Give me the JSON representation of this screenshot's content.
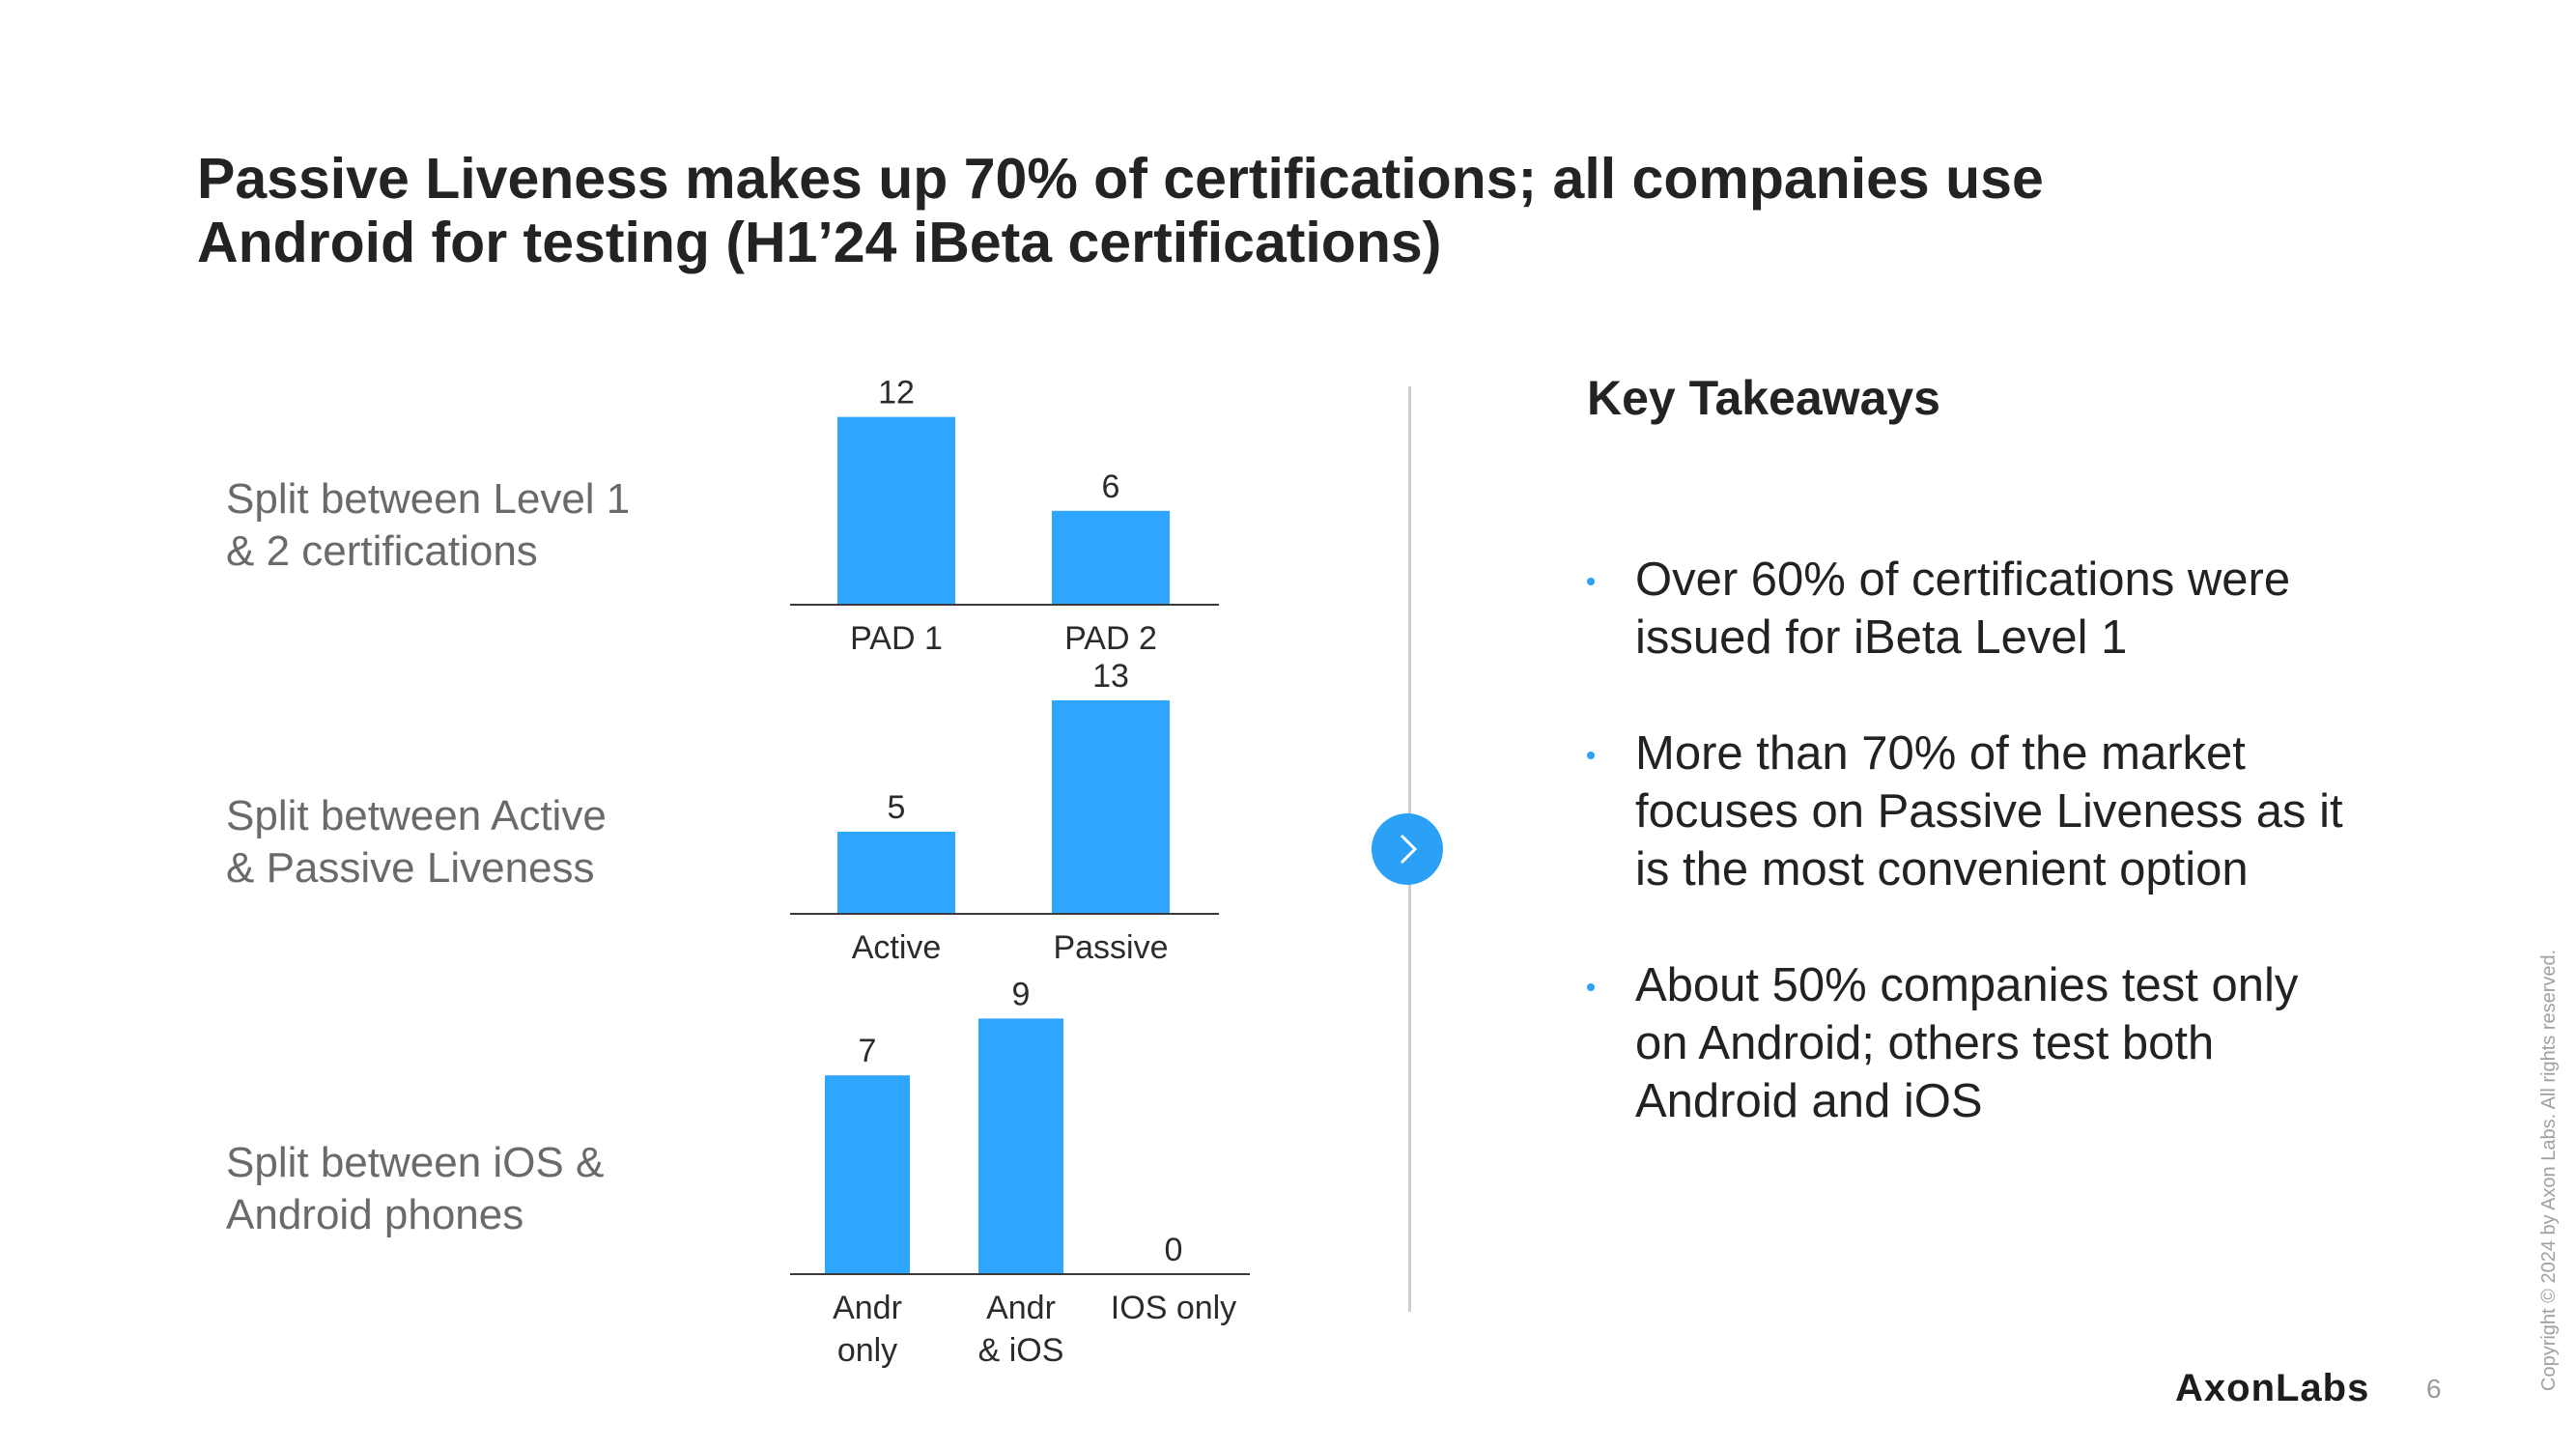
{
  "title": {
    "line1": "Passive Liveness makes up 70% of certifications; all companies use",
    "line2": "Android for testing (H1’24 iBeta certifications)"
  },
  "rows": [
    {
      "label_lines": [
        "Split between Level 1",
        "& 2 certifications"
      ]
    },
    {
      "label_lines": [
        "Split between Active",
        "& Passive Liveness"
      ]
    },
    {
      "label_lines": [
        "Split between iOS &",
        "Android phones"
      ]
    }
  ],
  "chart_data": [
    {
      "type": "bar",
      "categories": [
        "PAD 1",
        "PAD 2"
      ],
      "values": [
        12,
        6
      ],
      "color": "#2ea6fd",
      "ylim": [
        0,
        12
      ]
    },
    {
      "type": "bar",
      "categories": [
        "Active",
        "Passive"
      ],
      "values": [
        5,
        13
      ],
      "color": "#2ea6fd",
      "ylim": [
        0,
        13
      ]
    },
    {
      "type": "bar",
      "categories": [
        [
          "Andr",
          "only"
        ],
        [
          "Andr",
          "& iOS"
        ],
        [
          "IOS only"
        ]
      ],
      "values": [
        7,
        9,
        0
      ],
      "color": "#2ea6fd",
      "ylim": [
        0,
        9
      ]
    }
  ],
  "takeaways": {
    "heading": "Key Takeaways",
    "bullets": [
      {
        "lines": [
          "Over 60% of certifications were",
          "issued for iBeta Level 1"
        ]
      },
      {
        "lines": [
          "More than 70% of the market",
          "focuses on Passive Liveness as it",
          "is the most convenient option"
        ]
      },
      {
        "lines": [
          "About 50% companies test only",
          "on Android; others test both",
          "Android and iOS"
        ]
      }
    ]
  },
  "footer": {
    "logo": "AxonLabs",
    "page_number": "6",
    "copyright": "Copyright © 2024 by Axon Labs. All rights reserved."
  },
  "icons": {
    "next": "chevron-right-icon"
  },
  "colors": {
    "accent": "#2aa1f6",
    "bar": "#2ea6fd"
  }
}
